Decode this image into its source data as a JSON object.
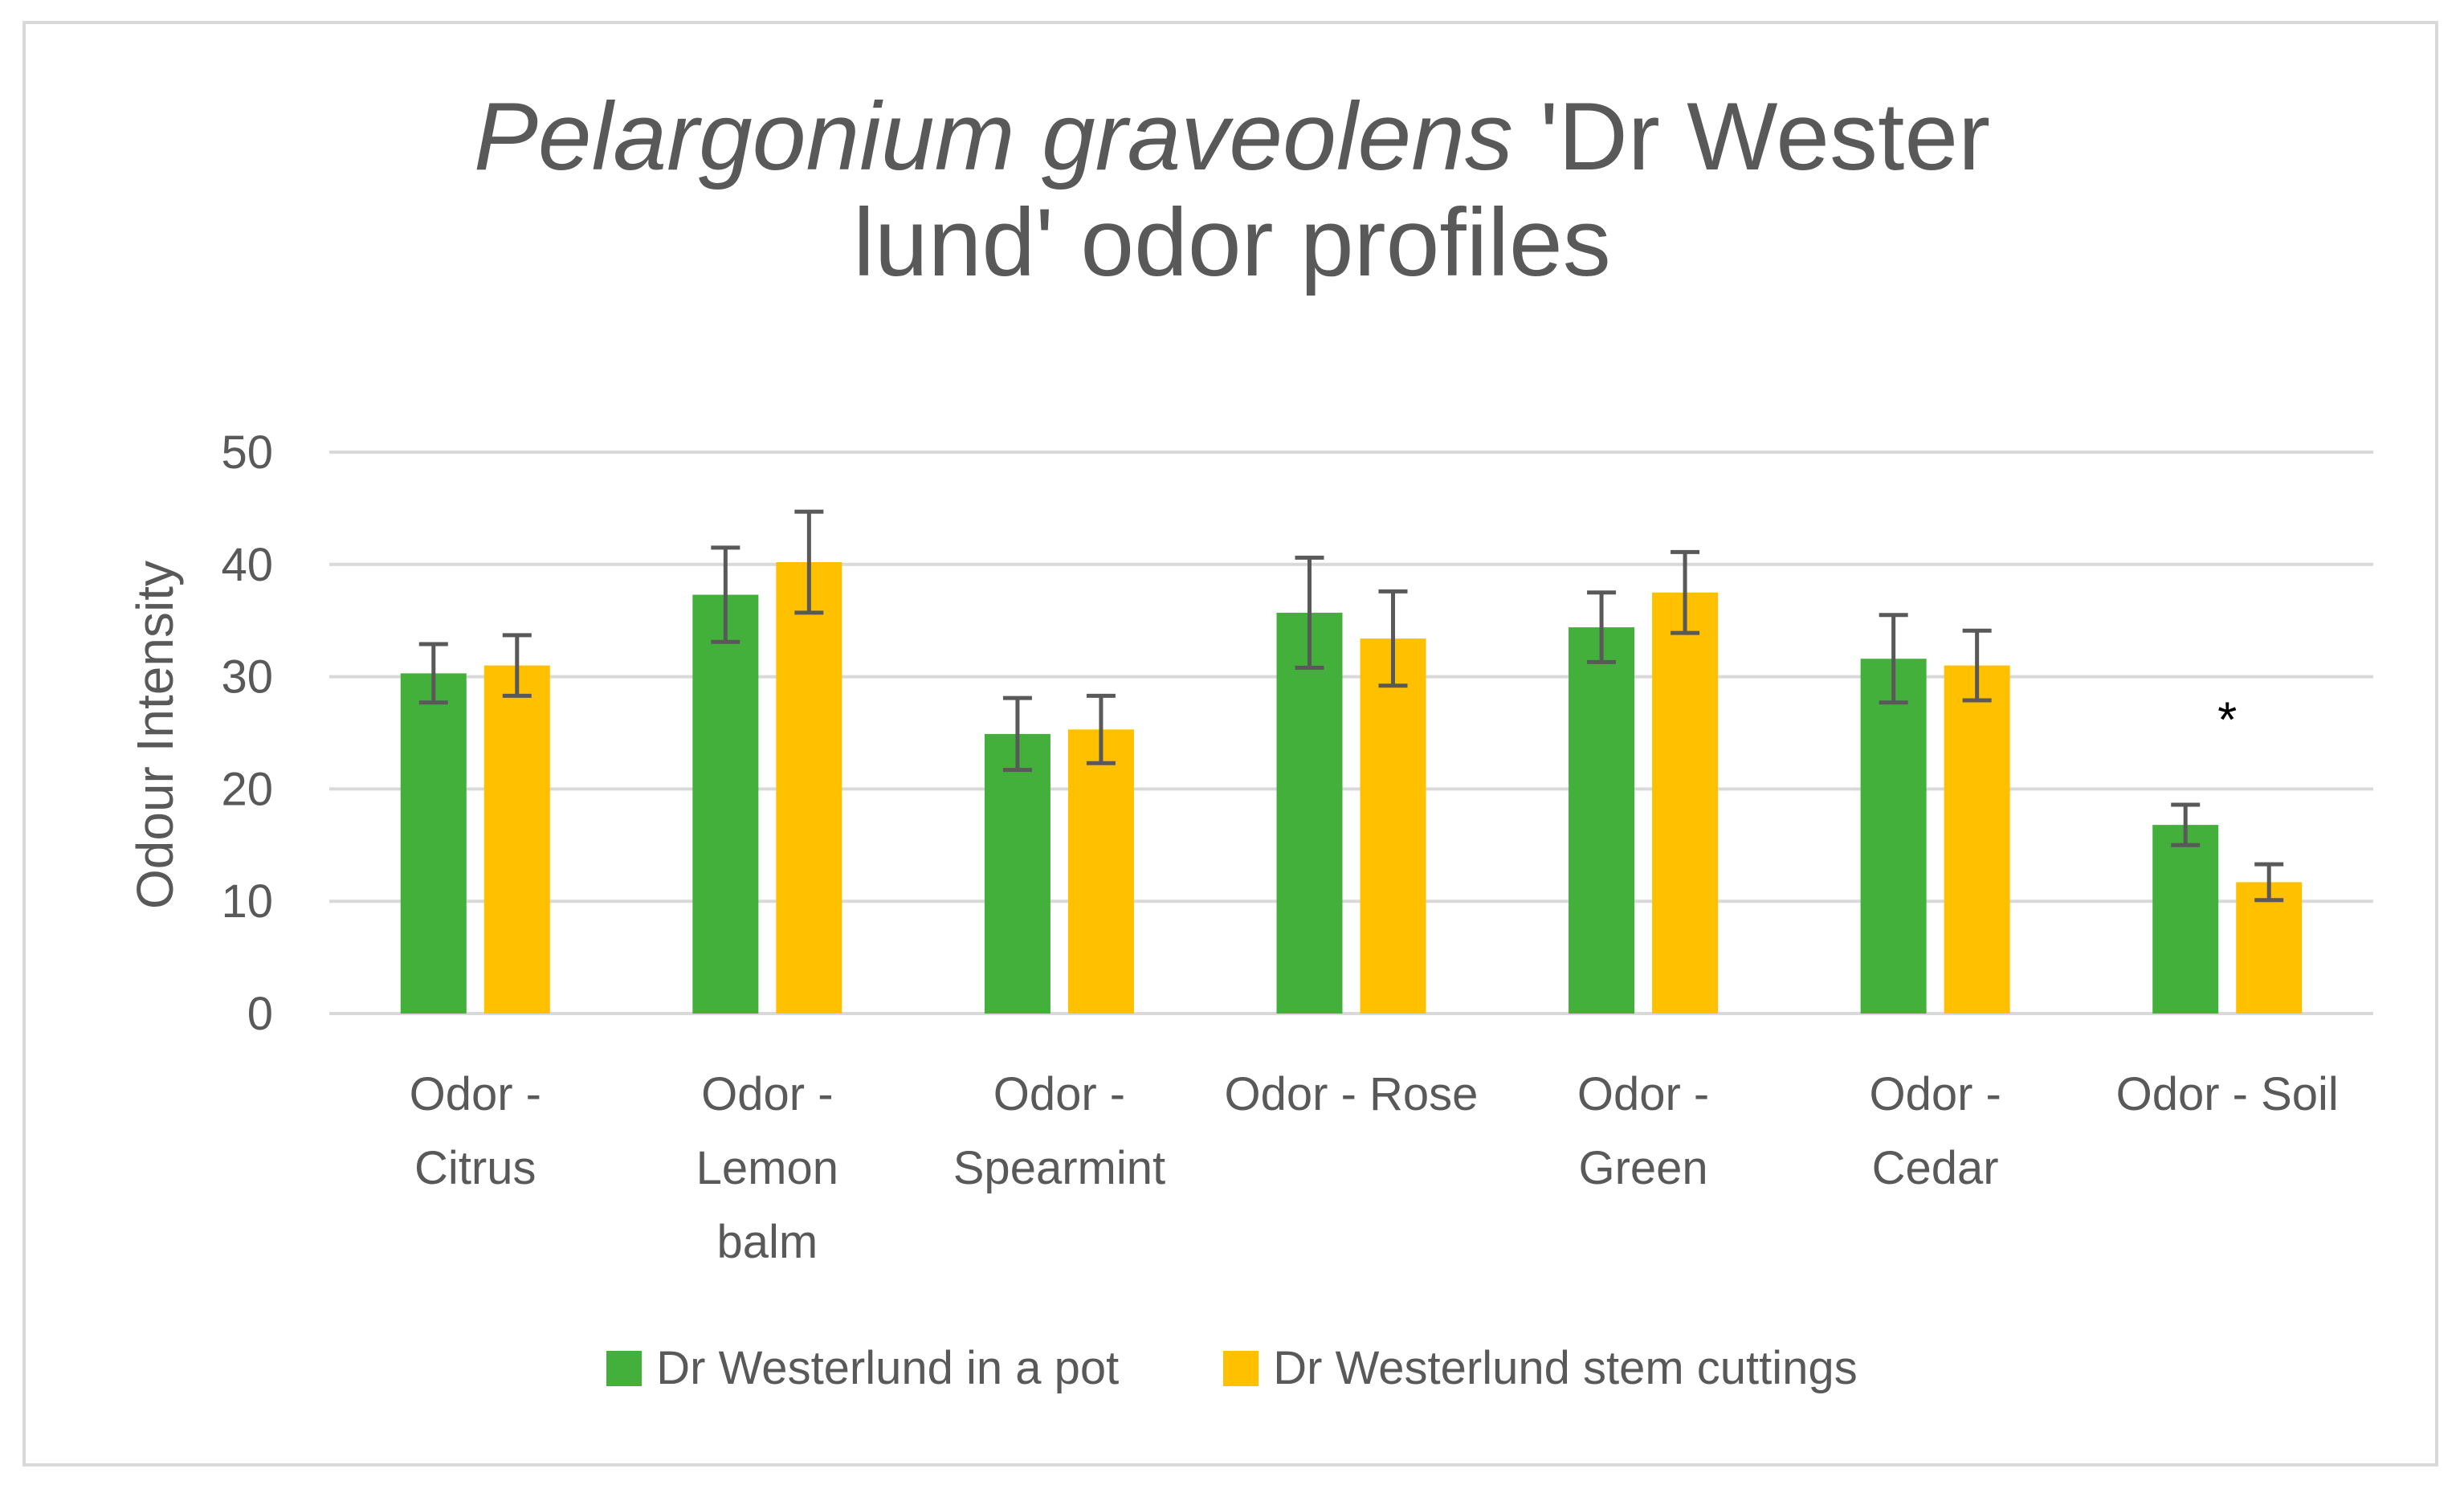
{
  "chart_data": {
    "type": "bar",
    "title": {
      "line1_italic": "Pelargonium graveolens",
      "line1_rest": " 'Dr Wester",
      "line2": "lund' odor profiles"
    },
    "xlabel": "",
    "ylabel": "Odour Intensity",
    "ylim": [
      0,
      50
    ],
    "yticks": [
      0,
      10,
      20,
      30,
      40,
      50
    ],
    "grid": true,
    "legend_position": "bottom",
    "categories": [
      [
        "Odor -",
        "Citrus"
      ],
      [
        "Odor -",
        "Lemon",
        "balm"
      ],
      [
        "Odor -",
        "Spearmint"
      ],
      [
        "Odor - Rose"
      ],
      [
        "Odor -",
        "Green"
      ],
      [
        "Odor -",
        "Cedar"
      ],
      [
        "Odor - Soil"
      ]
    ],
    "series": [
      {
        "name": "Dr Westerlund in a pot",
        "color": "#43b03c",
        "values": [
          30.3,
          37.3,
          24.9,
          35.7,
          34.4,
          31.6,
          16.8
        ],
        "error": [
          2.6,
          4.2,
          3.2,
          4.9,
          3.1,
          3.9,
          1.8
        ]
      },
      {
        "name": "Dr Westerlund stem cuttings",
        "color": "#ffc000",
        "values": [
          31.0,
          40.2,
          25.3,
          33.4,
          37.5,
          31.0,
          11.7
        ],
        "error": [
          2.7,
          4.5,
          3.0,
          4.2,
          3.6,
          3.1,
          1.6
        ]
      }
    ],
    "annotations": [
      {
        "category_index": 6,
        "text": "*",
        "y": 27.5
      }
    ]
  }
}
